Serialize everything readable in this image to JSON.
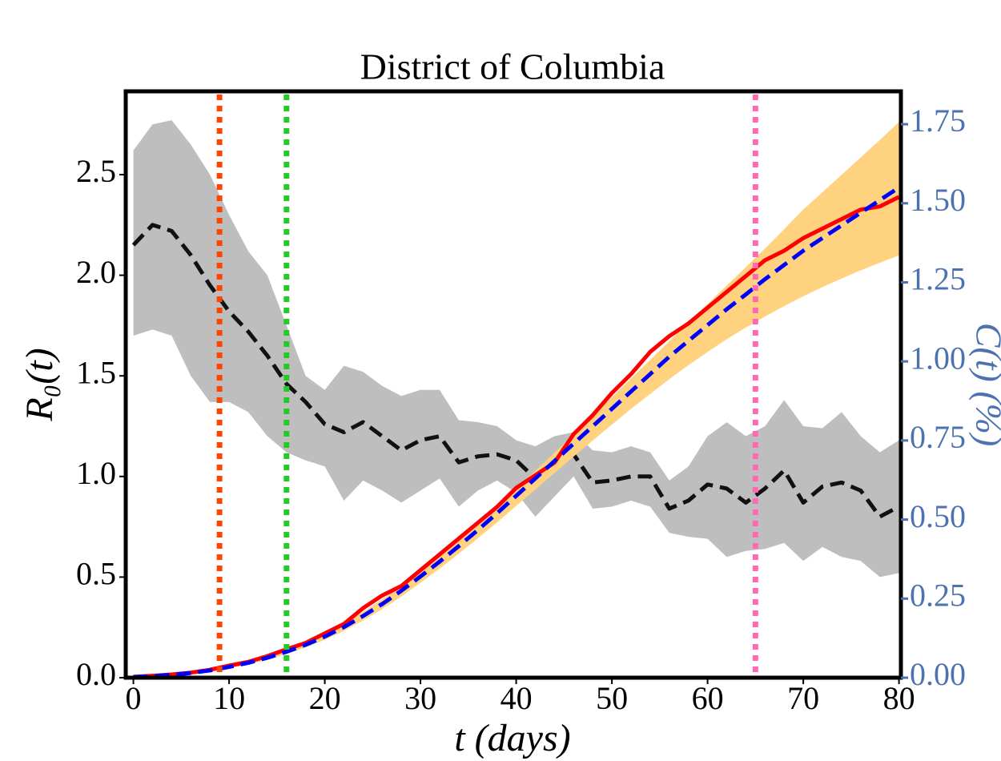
{
  "chart_data": {
    "type": "dual-axis-line",
    "title": "District of Columbia",
    "x_label": "t (days)",
    "y_label": "R₀(t)",
    "y2_label": "C(t) (%)",
    "xlim": [
      -0.8,
      80.2
    ],
    "xticks": [
      0,
      10,
      20,
      30,
      40,
      50,
      60,
      70,
      80
    ],
    "ylim": [
      0,
      2.914
    ],
    "yticks": [
      {
        "value": 0,
        "label": "0.0"
      },
      0.5,
      {
        "value": 1,
        "label": "1.0"
      },
      1.5,
      {
        "value": 2,
        "label": "2.0"
      },
      2.5
    ],
    "y2lim": [
      0,
      1.854
    ],
    "y2ticks": [
      {
        "value": 0,
        "label": "0.00"
      },
      0.25,
      {
        "value": 0.5,
        "label": "0.50"
      },
      0.75,
      {
        "value": 1,
        "label": "1.00"
      },
      1.25,
      {
        "value": 1.5,
        "label": "1.50"
      },
      1.75
    ],
    "y2_color": "#4c72b0",
    "x": [
      0,
      2,
      4,
      6,
      8,
      10,
      12,
      14,
      16,
      18,
      20,
      22,
      24,
      26,
      28,
      30,
      32,
      34,
      36,
      38,
      40,
      42,
      44,
      46,
      48,
      50,
      52,
      54,
      56,
      58,
      60,
      62,
      64,
      66,
      68,
      70,
      72,
      74,
      76,
      78,
      80
    ],
    "bands": [
      {
        "color": "#bebebe",
        "axis": "y",
        "lower": [
          1.7,
          1.73,
          1.7,
          1.5,
          1.37,
          1.37,
          1.32,
          1.2,
          1.12,
          1.08,
          1.05,
          0.88,
          0.98,
          0.93,
          0.87,
          0.93,
          0.99,
          0.85,
          0.93,
          0.98,
          0.92,
          0.8,
          0.9,
          1.0,
          0.84,
          0.85,
          0.88,
          0.85,
          0.72,
          0.7,
          0.69,
          0.6,
          0.63,
          0.64,
          0.67,
          0.58,
          0.65,
          0.6,
          0.58,
          0.5,
          0.52
        ],
        "upper": [
          2.62,
          2.75,
          2.77,
          2.65,
          2.5,
          2.3,
          2.12,
          2.0,
          1.75,
          1.5,
          1.43,
          1.55,
          1.52,
          1.45,
          1.4,
          1.43,
          1.43,
          1.28,
          1.27,
          1.25,
          1.18,
          1.15,
          1.2,
          1.22,
          1.13,
          1.12,
          1.15,
          1.12,
          0.98,
          1.05,
          1.2,
          1.27,
          1.2,
          1.25,
          1.38,
          1.25,
          1.24,
          1.32,
          1.2,
          1.12,
          1.18
        ]
      },
      {
        "color": "#ffd27f",
        "axis": "y2",
        "lower": [
          0.001,
          0.003,
          0.007,
          0.012,
          0.02,
          0.03,
          0.042,
          0.057,
          0.075,
          0.096,
          0.12,
          0.148,
          0.181,
          0.217,
          0.257,
          0.3,
          0.345,
          0.392,
          0.441,
          0.491,
          0.543,
          0.595,
          0.647,
          0.699,
          0.75,
          0.8,
          0.85,
          0.897,
          0.944,
          0.988,
          1.03,
          1.07,
          1.107,
          1.142,
          1.175,
          1.206,
          1.235,
          1.262,
          1.288,
          1.312,
          1.335
        ],
        "upper": [
          0.004,
          0.007,
          0.012,
          0.018,
          0.027,
          0.039,
          0.053,
          0.07,
          0.09,
          0.113,
          0.14,
          0.172,
          0.208,
          0.248,
          0.29,
          0.336,
          0.384,
          0.434,
          0.487,
          0.541,
          0.597,
          0.654,
          0.711,
          0.769,
          0.828,
          0.887,
          0.946,
          1.005,
          1.064,
          1.123,
          1.182,
          1.24,
          1.298,
          1.357,
          1.418,
          1.48,
          1.535,
          1.59,
          1.645,
          1.7,
          1.757
        ]
      }
    ],
    "series": [
      {
        "color": "#111111",
        "dashed": true,
        "axis": "y",
        "values": [
          2.15,
          2.25,
          2.22,
          2.1,
          1.95,
          1.82,
          1.72,
          1.6,
          1.46,
          1.37,
          1.26,
          1.22,
          1.27,
          1.2,
          1.13,
          1.18,
          1.2,
          1.07,
          1.1,
          1.11,
          1.08,
          0.99,
          1.08,
          1.11,
          0.97,
          0.98,
          1.0,
          1.0,
          0.84,
          0.88,
          0.96,
          0.94,
          0.87,
          0.94,
          1.03,
          0.87,
          0.95,
          0.97,
          0.93,
          0.8,
          0.85
        ]
      },
      {
        "color": "#ff0000",
        "dashed": false,
        "axis": "y2",
        "values": [
          0.003,
          0.006,
          0.01,
          0.016,
          0.025,
          0.038,
          0.05,
          0.068,
          0.09,
          0.11,
          0.14,
          0.17,
          0.22,
          0.26,
          0.29,
          0.34,
          0.39,
          0.44,
          0.49,
          0.54,
          0.6,
          0.64,
          0.68,
          0.77,
          0.83,
          0.9,
          0.96,
          1.03,
          1.08,
          1.12,
          1.17,
          1.22,
          1.27,
          1.32,
          1.35,
          1.39,
          1.42,
          1.45,
          1.48,
          1.49,
          1.52
        ]
      },
      {
        "color": "#0000ff",
        "dashed": true,
        "axis": "y2",
        "values": [
          0.002,
          0.005,
          0.009,
          0.015,
          0.023,
          0.034,
          0.047,
          0.063,
          0.082,
          0.104,
          0.13,
          0.16,
          0.195,
          0.233,
          0.275,
          0.32,
          0.367,
          0.416,
          0.467,
          0.52,
          0.575,
          0.63,
          0.685,
          0.74,
          0.795,
          0.85,
          0.905,
          0.96,
          1.015,
          1.065,
          1.115,
          1.165,
          1.212,
          1.26,
          1.305,
          1.35,
          1.39,
          1.43,
          1.47,
          1.51,
          1.55
        ]
      }
    ],
    "vlines": [
      {
        "x": 9,
        "color": "#ff4500"
      },
      {
        "x": 16,
        "color": "#22cc22"
      },
      {
        "x": 65,
        "color": "#ff69b4"
      }
    ]
  }
}
